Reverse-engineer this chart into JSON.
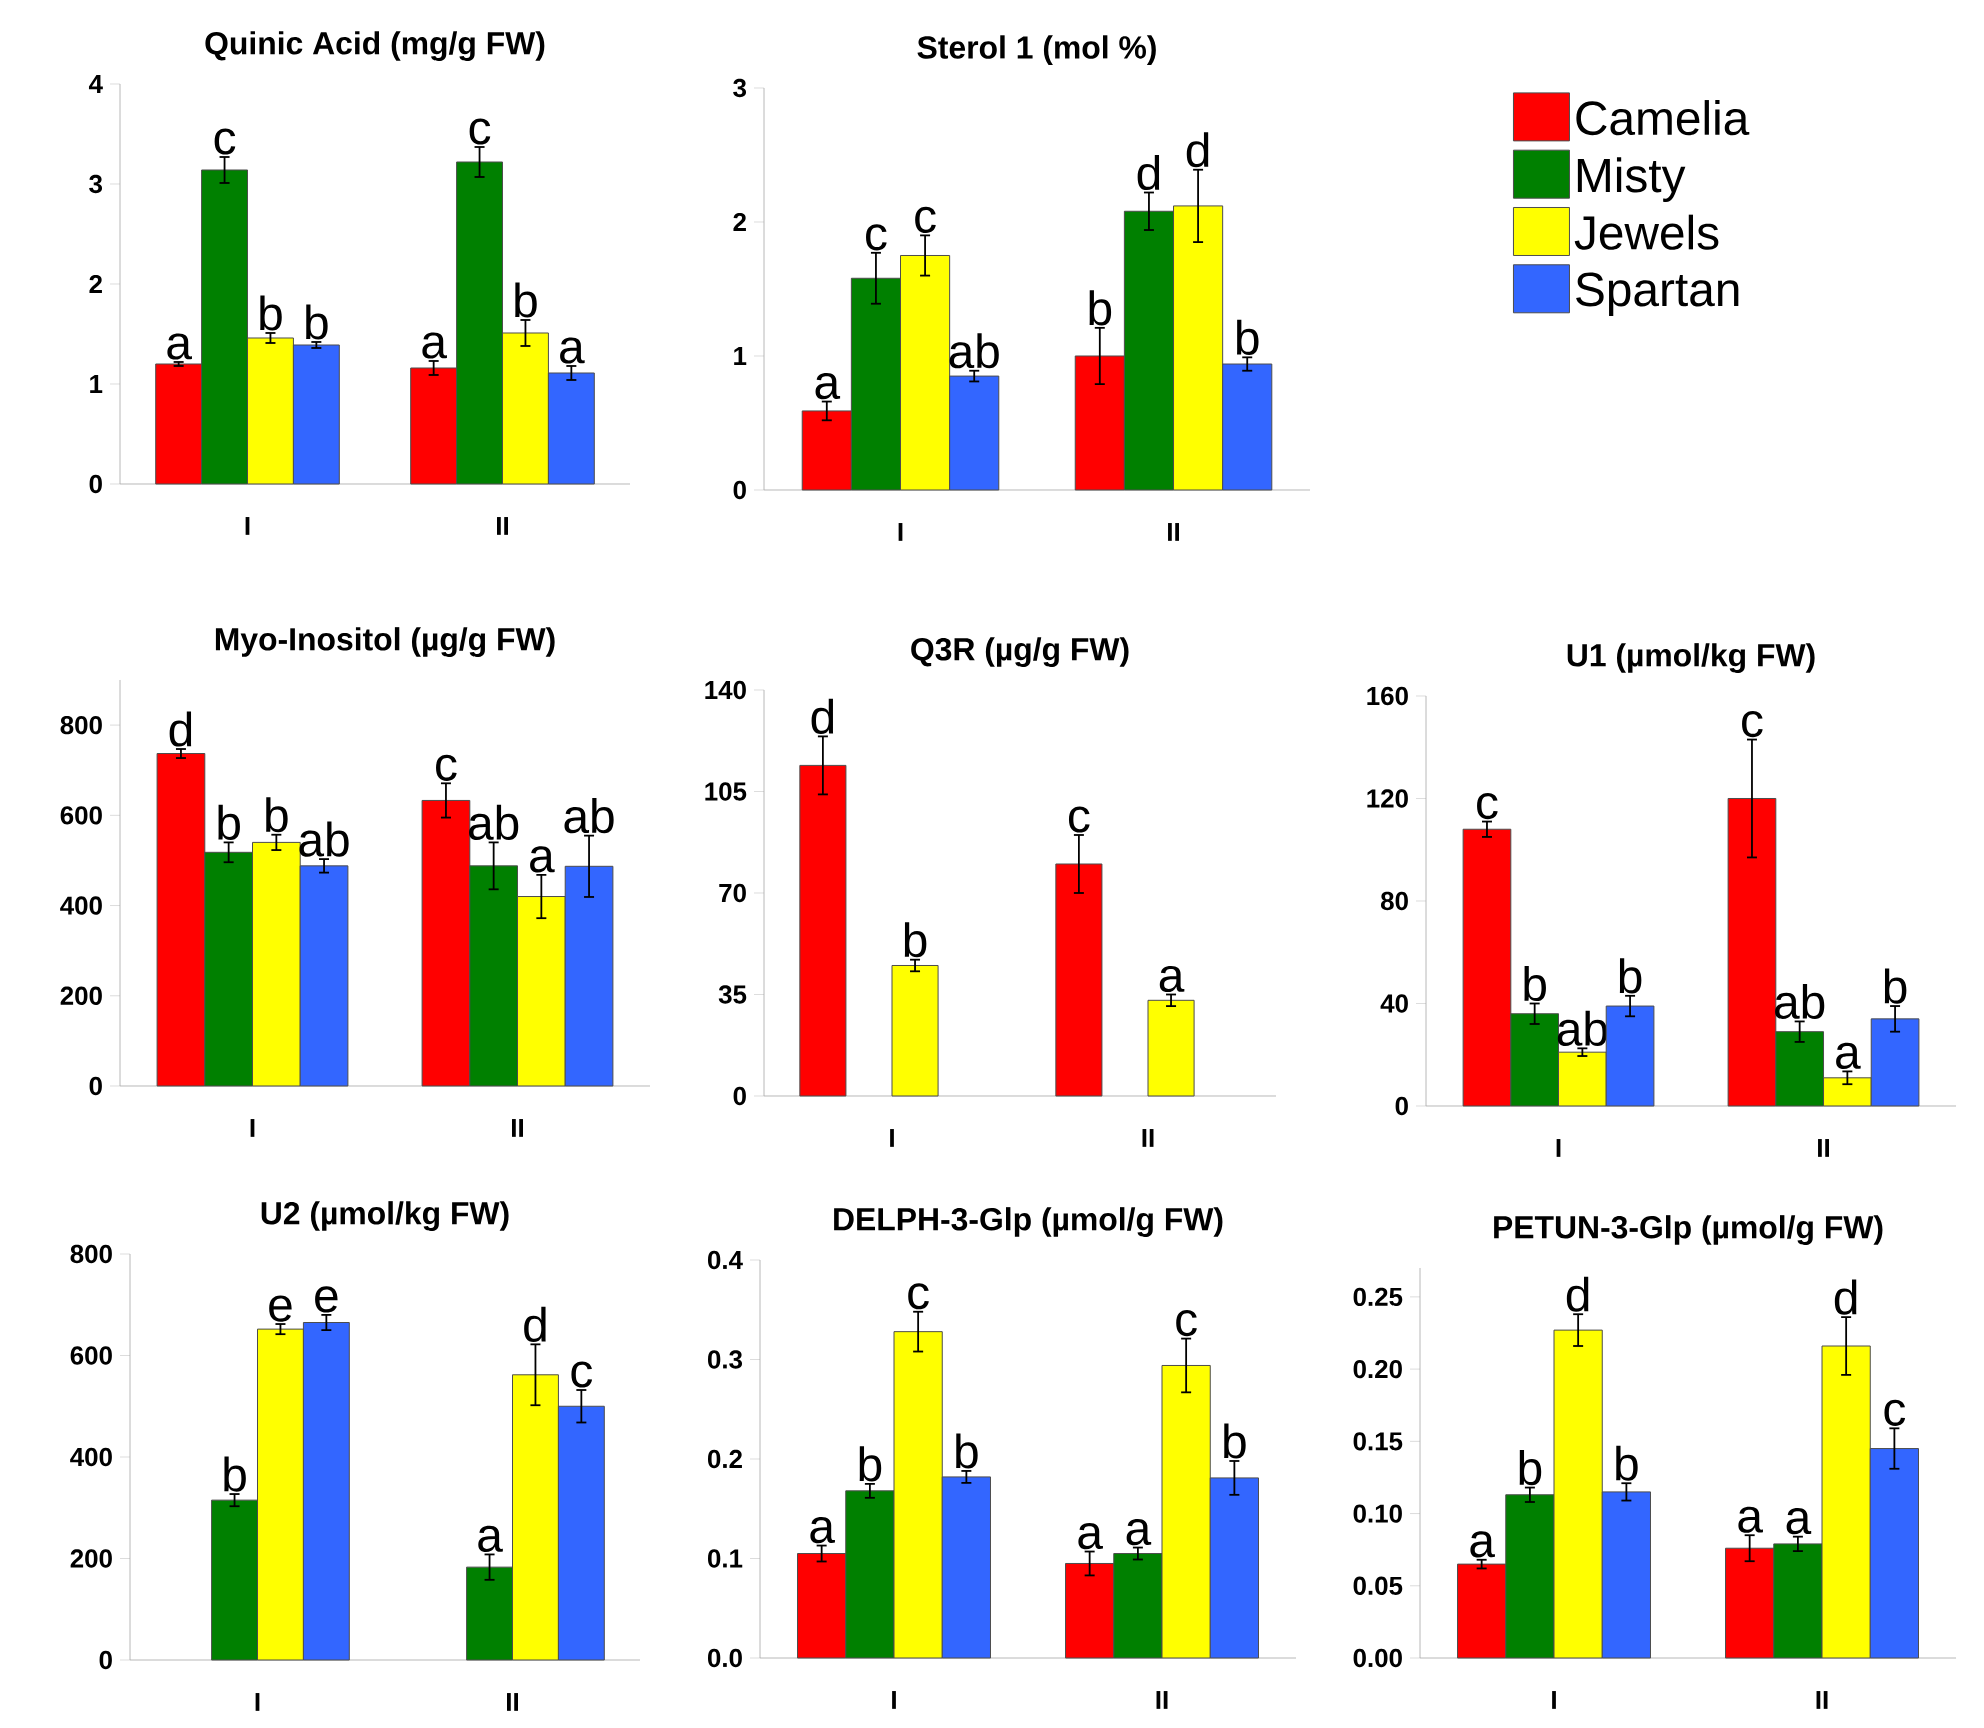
{
  "chart_data": [
    {
      "type": "bar",
      "title": "Quinic Acid (mg/g FW)",
      "categories": [
        "I",
        "II"
      ],
      "ylim": [
        0,
        4
      ],
      "yticks": [
        0,
        1,
        2,
        3,
        4
      ],
      "series": [
        {
          "color": "#ff0000",
          "values": [
            1.2,
            1.16
          ],
          "errors": [
            0.02,
            0.07
          ],
          "value_labels": [
            "a",
            "a"
          ]
        },
        {
          "color": "#008000",
          "values": [
            3.14,
            3.22
          ],
          "errors": [
            0.13,
            0.15
          ],
          "value_labels": [
            "c",
            "c"
          ]
        },
        {
          "color": "#ffff00",
          "values": [
            1.46,
            1.51
          ],
          "errors": [
            0.05,
            0.13
          ],
          "value_labels": [
            "b",
            "b"
          ]
        },
        {
          "color": "#3366ff",
          "values": [
            1.39,
            1.11
          ],
          "errors": [
            0.03,
            0.07
          ],
          "value_labels": [
            "b",
            "a"
          ]
        }
      ]
    },
    {
      "type": "bar",
      "title": "Sterol 1 (mol %)",
      "categories": [
        "I",
        "II"
      ],
      "ylim": [
        0,
        3
      ],
      "yticks": [
        0,
        1,
        2,
        3
      ],
      "legend": "right",
      "series": [
        {
          "name": "Camelia",
          "color": "#ff0000",
          "values": [
            0.59,
            1.0
          ],
          "errors": [
            0.07,
            0.21
          ],
          "value_labels": [
            "a",
            "b"
          ]
        },
        {
          "name": "Misty",
          "color": "#008000",
          "values": [
            1.58,
            2.08
          ],
          "errors": [
            0.19,
            0.14
          ],
          "value_labels": [
            "c",
            "d"
          ]
        },
        {
          "name": "Jewels",
          "color": "#ffff00",
          "values": [
            1.75,
            2.12
          ],
          "errors": [
            0.15,
            0.27
          ],
          "value_labels": [
            "c",
            "d"
          ]
        },
        {
          "name": "Spartan",
          "color": "#3366ff",
          "values": [
            0.85,
            0.94
          ],
          "errors": [
            0.04,
            0.05
          ],
          "value_labels": [
            "ab",
            "b"
          ]
        }
      ]
    },
    {
      "type": "bar",
      "title": "Myo-Inositol (µg/g FW)",
      "categories": [
        "I",
        "II"
      ],
      "ylim": [
        0,
        900
      ],
      "yticks": [
        0,
        200,
        400,
        600,
        800
      ],
      "series": [
        {
          "color": "#ff0000",
          "values": [
            737,
            633
          ],
          "errors": [
            10,
            38
          ],
          "value_labels": [
            "d",
            "c"
          ]
        },
        {
          "color": "#008000",
          "values": [
            518,
            488
          ],
          "errors": [
            22,
            52
          ],
          "value_labels": [
            "b",
            "ab"
          ]
        },
        {
          "color": "#ffff00",
          "values": [
            540,
            420
          ],
          "errors": [
            17,
            48
          ],
          "value_labels": [
            "b",
            "a"
          ]
        },
        {
          "color": "#3366ff",
          "values": [
            488,
            487
          ],
          "errors": [
            15,
            68
          ],
          "value_labels": [
            "ab",
            "ab"
          ]
        }
      ]
    },
    {
      "type": "bar",
      "title": "Q3R (µg/g FW)",
      "categories": [
        "I",
        "II"
      ],
      "ylim": [
        0,
        140
      ],
      "yticks": [
        0,
        35,
        70,
        105,
        140
      ],
      "series": [
        {
          "color": "#ff0000",
          "values": [
            114,
            80
          ],
          "errors": [
            10,
            10
          ],
          "value_labels": [
            "d",
            "c"
          ]
        },
        {
          "color": "#008000",
          "values": [
            null,
            null
          ],
          "errors": [
            null,
            null
          ],
          "value_labels": [
            null,
            null
          ]
        },
        {
          "color": "#ffff00",
          "values": [
            45,
            33
          ],
          "errors": [
            2,
            2
          ],
          "value_labels": [
            "b",
            "a"
          ]
        },
        {
          "color": "#3366ff",
          "values": [
            null,
            null
          ],
          "errors": [
            null,
            null
          ],
          "value_labels": [
            null,
            null
          ]
        }
      ]
    },
    {
      "type": "bar",
      "title": "U1 (µmol/kg FW)",
      "categories": [
        "I",
        "II"
      ],
      "ylim": [
        0,
        160
      ],
      "yticks": [
        0,
        40,
        80,
        120,
        160
      ],
      "series": [
        {
          "color": "#ff0000",
          "values": [
            108,
            120
          ],
          "errors": [
            3,
            23
          ],
          "value_labels": [
            "c",
            "c"
          ]
        },
        {
          "color": "#008000",
          "values": [
            36,
            29
          ],
          "errors": [
            4,
            4
          ],
          "value_labels": [
            "b",
            "ab"
          ]
        },
        {
          "color": "#ffff00",
          "values": [
            21,
            11
          ],
          "errors": [
            1.5,
            2.5
          ],
          "value_labels": [
            "ab",
            "a"
          ]
        },
        {
          "color": "#3366ff",
          "values": [
            39,
            34
          ],
          "errors": [
            4,
            5
          ],
          "value_labels": [
            "b",
            "b"
          ]
        }
      ]
    },
    {
      "type": "bar",
      "title": "U2 (µmol/kg FW)",
      "categories": [
        "I",
        "II"
      ],
      "ylim": [
        0,
        800
      ],
      "yticks": [
        0,
        200,
        400,
        600,
        800
      ],
      "series": [
        {
          "color": "#ff0000",
          "values": [
            null,
            null
          ],
          "errors": [
            null,
            null
          ],
          "value_labels": [
            null,
            null
          ]
        },
        {
          "color": "#008000",
          "values": [
            315,
            183
          ],
          "errors": [
            12,
            25
          ],
          "value_labels": [
            "b",
            "a"
          ]
        },
        {
          "color": "#ffff00",
          "values": [
            652,
            562
          ],
          "errors": [
            10,
            60
          ],
          "value_labels": [
            "e",
            "d"
          ]
        },
        {
          "color": "#3366ff",
          "values": [
            665,
            500
          ],
          "errors": [
            15,
            32
          ],
          "value_labels": [
            "e",
            "c"
          ]
        }
      ]
    },
    {
      "type": "bar",
      "title": "DELPH-3-Glp (µmol/g FW)",
      "categories": [
        "I",
        "II"
      ],
      "ylim": [
        0,
        0.4
      ],
      "yticks": [
        {
          "value": 0,
          "label": "0.0"
        },
        0.1,
        0.2,
        0.3,
        0.4
      ],
      "series": [
        {
          "color": "#ff0000",
          "values": [
            0.105,
            0.095
          ],
          "errors": [
            0.008,
            0.012
          ],
          "value_labels": [
            "a",
            "a"
          ]
        },
        {
          "color": "#008000",
          "values": [
            0.168,
            0.105
          ],
          "errors": [
            0.007,
            0.006
          ],
          "value_labels": [
            "b",
            "a"
          ]
        },
        {
          "color": "#ffff00",
          "values": [
            0.328,
            0.294
          ],
          "errors": [
            0.02,
            0.027
          ],
          "value_labels": [
            "c",
            "c"
          ]
        },
        {
          "color": "#3366ff",
          "values": [
            0.182,
            0.181
          ],
          "errors": [
            0.006,
            0.017
          ],
          "value_labels": [
            "b",
            "b"
          ]
        }
      ]
    },
    {
      "type": "bar",
      "title": "PETUN-3-Glp (µmol/g FW)",
      "categories": [
        "I",
        "II"
      ],
      "ylim": [
        0,
        0.27
      ],
      "yticks": [
        {
          "value": 0,
          "label": "0.00"
        },
        {
          "value": 0.05,
          "label": "0.05"
        },
        {
          "value": 0.1,
          "label": "0.10"
        },
        {
          "value": 0.15,
          "label": "0.15"
        },
        {
          "value": 0.2,
          "label": "0.20"
        },
        0.25
      ],
      "series": [
        {
          "color": "#ff0000",
          "values": [
            0.065,
            0.076
          ],
          "errors": [
            0.003,
            0.009
          ],
          "value_labels": [
            "a",
            "a"
          ]
        },
        {
          "color": "#008000",
          "values": [
            0.113,
            0.079
          ],
          "errors": [
            0.005,
            0.005
          ],
          "value_labels": [
            "b",
            "a"
          ]
        },
        {
          "color": "#ffff00",
          "values": [
            0.227,
            0.216
          ],
          "errors": [
            0.011,
            0.02
          ],
          "value_labels": [
            "d",
            "d"
          ]
        },
        {
          "color": "#3366ff",
          "values": [
            0.115,
            0.145
          ],
          "errors": [
            0.006,
            0.014
          ],
          "value_labels": [
            "b",
            "c"
          ]
        }
      ]
    }
  ]
}
